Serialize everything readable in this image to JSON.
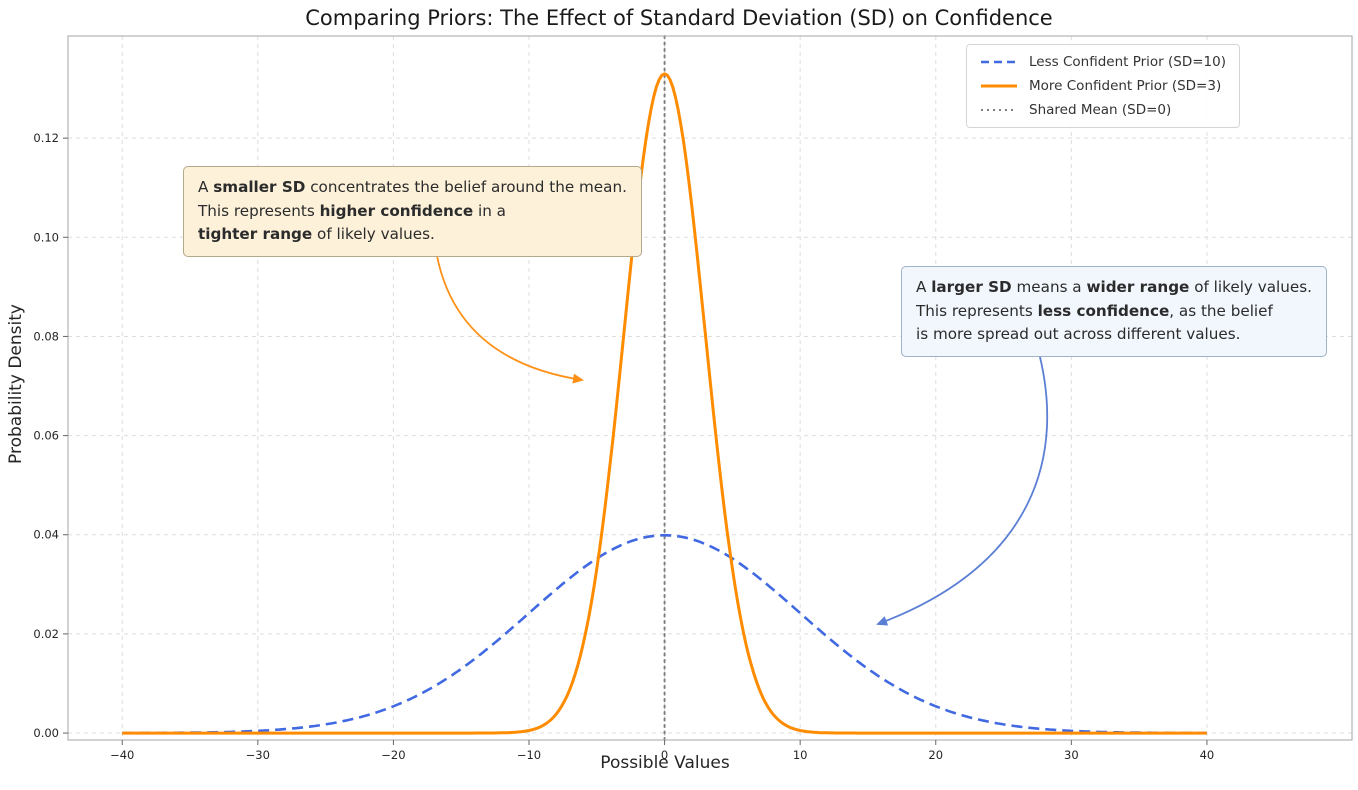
{
  "chart_data": {
    "type": "line",
    "title": "Comparing Priors: The Effect of Standard Deviation (SD) on Confidence",
    "xlabel": "Possible Values",
    "ylabel": "Probability Density",
    "xlim": [
      -44,
      50.7
    ],
    "ylim": [
      -0.0014,
      0.1406
    ],
    "grid": true,
    "x_ticks": [
      {
        "v": -40,
        "label": "−40"
      },
      {
        "v": -30,
        "label": "−30"
      },
      {
        "v": -20,
        "label": "−20"
      },
      {
        "v": -10,
        "label": "−10"
      },
      {
        "v": 0,
        "label": "0"
      },
      {
        "v": 10,
        "label": "10"
      },
      {
        "v": 20,
        "label": "20"
      },
      {
        "v": 30,
        "label": "30"
      },
      {
        "v": 40,
        "label": "40"
      }
    ],
    "y_ticks": [
      {
        "v": 0,
        "label": "0.00"
      },
      {
        "v": 0.02,
        "label": "0.02"
      },
      {
        "v": 0.04,
        "label": "0.04"
      },
      {
        "v": 0.06,
        "label": "0.06"
      },
      {
        "v": 0.08,
        "label": "0.08"
      },
      {
        "v": 0.1,
        "label": "0.10"
      },
      {
        "v": 0.12,
        "label": "0.12"
      }
    ],
    "series": [
      {
        "name": "Less Confident Prior (SD=10)",
        "distribution": "normal",
        "mean": 0,
        "sd": 10,
        "peak_density": 0.0399,
        "x_range": [
          -40,
          40
        ],
        "color": "#4169e1",
        "line_style": "dashed",
        "line_width": 2.6
      },
      {
        "name": "More Confident Prior (SD=3)",
        "distribution": "normal",
        "mean": 0,
        "sd": 3,
        "peak_density": 0.133,
        "x_range": [
          -40,
          40
        ],
        "color": "#ff8c00",
        "line_style": "solid",
        "line_width": 3
      }
    ],
    "reference_line": {
      "name": "Shared Mean (SD=0)",
      "x": 0,
      "color": "#7f7f7f",
      "line_style": "dotted"
    },
    "legend": {
      "position": "upper right",
      "entries": [
        {
          "label": "Less Confident Prior (SD=10)",
          "color": "#4169e1",
          "style": "dashed"
        },
        {
          "label": "More Confident Prior (SD=3)",
          "color": "#ff8c00",
          "style": "solid"
        },
        {
          "label": "Shared Mean (SD=0)",
          "color": "#7f7f7f",
          "style": "dotted"
        }
      ]
    },
    "annotations": [
      {
        "id": "smaller-sd-note",
        "bg": "#fdf1da",
        "border": "#b5a98b",
        "arrow_color": "#ff9015",
        "lines": [
          [
            {
              "t": "A "
            },
            {
              "t": "smaller SD",
              "b": true
            },
            {
              "t": " concentrates the belief around the mean."
            }
          ],
          [
            {
              "t": "This represents "
            },
            {
              "t": "higher confidence",
              "b": true
            },
            {
              "t": " in a"
            }
          ],
          [
            {
              "t": "tighter range",
              "b": true
            },
            {
              "t": " of likely values."
            }
          ]
        ]
      },
      {
        "id": "larger-sd-note",
        "bg": "#f1f7fd",
        "border": "#9fb2c8",
        "arrow_color": "#5b7fd4",
        "lines": [
          [
            {
              "t": "A "
            },
            {
              "t": "larger SD",
              "b": true
            },
            {
              "t": " means a "
            },
            {
              "t": "wider range",
              "b": true
            },
            {
              "t": " of likely values."
            }
          ],
          [
            {
              "t": "This represents "
            },
            {
              "t": "less confidence",
              "b": true
            },
            {
              "t": ", as the belief"
            }
          ],
          [
            {
              "t": "is more spread out across different values."
            }
          ]
        ]
      }
    ]
  }
}
